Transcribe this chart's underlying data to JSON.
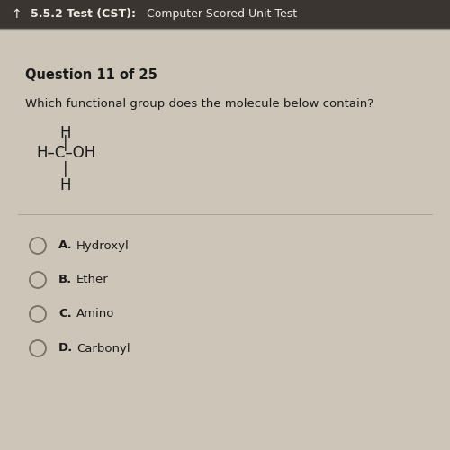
{
  "header_text": "5.5.2 Test (CST):",
  "header_subtext": "  Computer-Scored Unit Test",
  "question_label": "Question 11 of 25",
  "question_text": "Which functional group does the molecule below contain?",
  "choices": [
    {
      "letter": "A.",
      "text": "Hydroxyl"
    },
    {
      "letter": "B.",
      "text": "Ether"
    },
    {
      "letter": "C.",
      "text": "Amino"
    },
    {
      "letter": "D.",
      "text": "Carbonyl"
    }
  ],
  "bg_color": "#ccc5b8",
  "header_bg": "#3a3530",
  "text_color": "#1a1a1a",
  "header_text_color": "#f0ece4",
  "circle_edge_color": "#7a7060",
  "header_arrow": "↑",
  "figsize": [
    5.0,
    5.0
  ],
  "dpi": 100
}
